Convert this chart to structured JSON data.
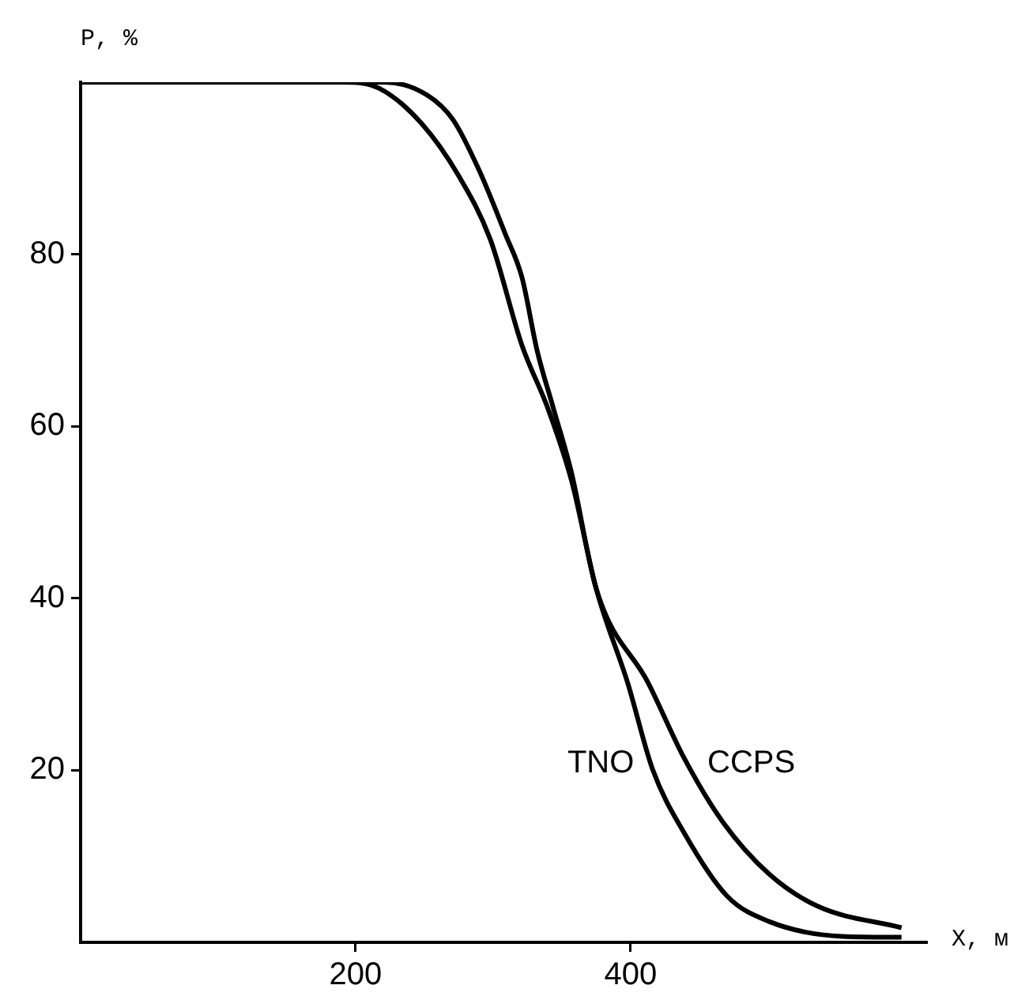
{
  "chart_data": {
    "type": "line",
    "xlabel": "X, м",
    "ylabel": "P, %",
    "xlim": [
      0,
      615
    ],
    "ylim": [
      0,
      100
    ],
    "xticks": [
      200,
      400
    ],
    "yticks": [
      20,
      40,
      60,
      80
    ],
    "grid": false,
    "legend": false,
    "series": [
      {
        "name": "TNO",
        "color": "#000000",
        "x": [
          0,
          191,
          217,
          248,
          275,
          298,
          321,
          340,
          357,
          375,
          398,
          416,
          439,
          470,
          501,
          554,
          597
        ],
        "values": [
          100,
          100,
          99.3,
          95.2,
          89.1,
          81.7,
          69.4,
          62,
          53.7,
          41.1,
          30.1,
          20.1,
          12.7,
          5.4,
          2.4,
          0.7,
          0.6
        ]
      },
      {
        "name": "CCPS",
        "color": "#000000",
        "x": [
          0,
          221,
          252,
          271,
          290,
          309,
          321,
          332,
          344,
          357,
          375,
          413,
          439,
          467,
          501,
          536,
          597
        ],
        "values": [
          100,
          100,
          98.5,
          95.6,
          89.7,
          82.3,
          77.3,
          68.8,
          62,
          54.6,
          41.1,
          30.1,
          21.4,
          14,
          7.9,
          4.2,
          1.7
        ]
      }
    ]
  }
}
